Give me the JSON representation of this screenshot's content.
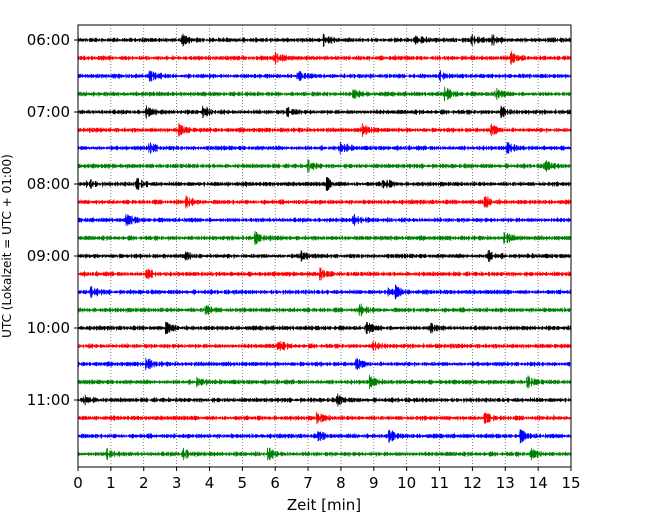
{
  "chart_data": {
    "type": "line",
    "title": "",
    "xlabel": "Zeit  [min]",
    "ylabel": "UTC (Lokalzeit = UTC + 01:00)",
    "xlim": [
      0,
      15
    ],
    "x_ticks": [
      "0",
      "1",
      "2",
      "3",
      "4",
      "5",
      "6",
      "7",
      "8",
      "9",
      "10",
      "11",
      "12",
      "13",
      "14",
      "15"
    ],
    "y_tick_labels": [
      "06:00",
      "07:00",
      "08:00",
      "09:00",
      "10:00",
      "11:00"
    ],
    "grid": "vertical dotted at each minute",
    "colors": [
      "#000000",
      "#ff0000",
      "#0000ff",
      "#008000"
    ],
    "traces": [
      {
        "start": "06:00",
        "events": [
          3.2,
          7.5,
          10.3,
          12.0,
          12.6
        ]
      },
      {
        "start": "06:15",
        "events": [
          6.0,
          13.2
        ]
      },
      {
        "start": "06:30",
        "events": [
          2.2,
          6.7,
          11.0
        ]
      },
      {
        "start": "06:45",
        "events": [
          8.4,
          11.2,
          12.7
        ]
      },
      {
        "start": "07:00",
        "events": [
          2.1,
          3.8,
          6.4,
          12.9
        ]
      },
      {
        "start": "07:15",
        "events": [
          3.1,
          8.7,
          12.6
        ]
      },
      {
        "start": "07:30",
        "events": [
          2.2,
          8.0,
          13.1
        ]
      },
      {
        "start": "07:45",
        "events": [
          7.0,
          14.2
        ]
      },
      {
        "start": "08:00",
        "events": [
          0.3,
          1.8,
          7.6,
          9.3
        ]
      },
      {
        "start": "08:15",
        "events": [
          3.3,
          12.4
        ]
      },
      {
        "start": "08:30",
        "events": [
          1.5,
          8.4
        ]
      },
      {
        "start": "08:45",
        "events": [
          5.4,
          13.0
        ]
      },
      {
        "start": "09:00",
        "events": [
          3.3,
          6.8,
          12.5
        ]
      },
      {
        "start": "09:15",
        "events": [
          2.1,
          7.4
        ]
      },
      {
        "start": "09:30",
        "events": [
          0.4,
          9.4,
          9.7
        ]
      },
      {
        "start": "09:45",
        "events": [
          3.9,
          8.6
        ]
      },
      {
        "start": "10:00",
        "events": [
          2.7,
          8.8,
          10.7
        ]
      },
      {
        "start": "10:15",
        "events": [
          6.1,
          9.0
        ]
      },
      {
        "start": "10:30",
        "events": [
          2.1,
          8.5
        ]
      },
      {
        "start": "10:45",
        "events": [
          3.6,
          8.9,
          13.7
        ]
      },
      {
        "start": "11:00",
        "events": [
          0.2,
          7.9
        ]
      },
      {
        "start": "11:15",
        "events": [
          7.3,
          12.4
        ]
      },
      {
        "start": "11:30",
        "events": [
          7.3,
          9.5,
          13.5
        ]
      },
      {
        "start": "11:45",
        "events": [
          0.9,
          3.2,
          5.8,
          13.8
        ]
      }
    ]
  }
}
